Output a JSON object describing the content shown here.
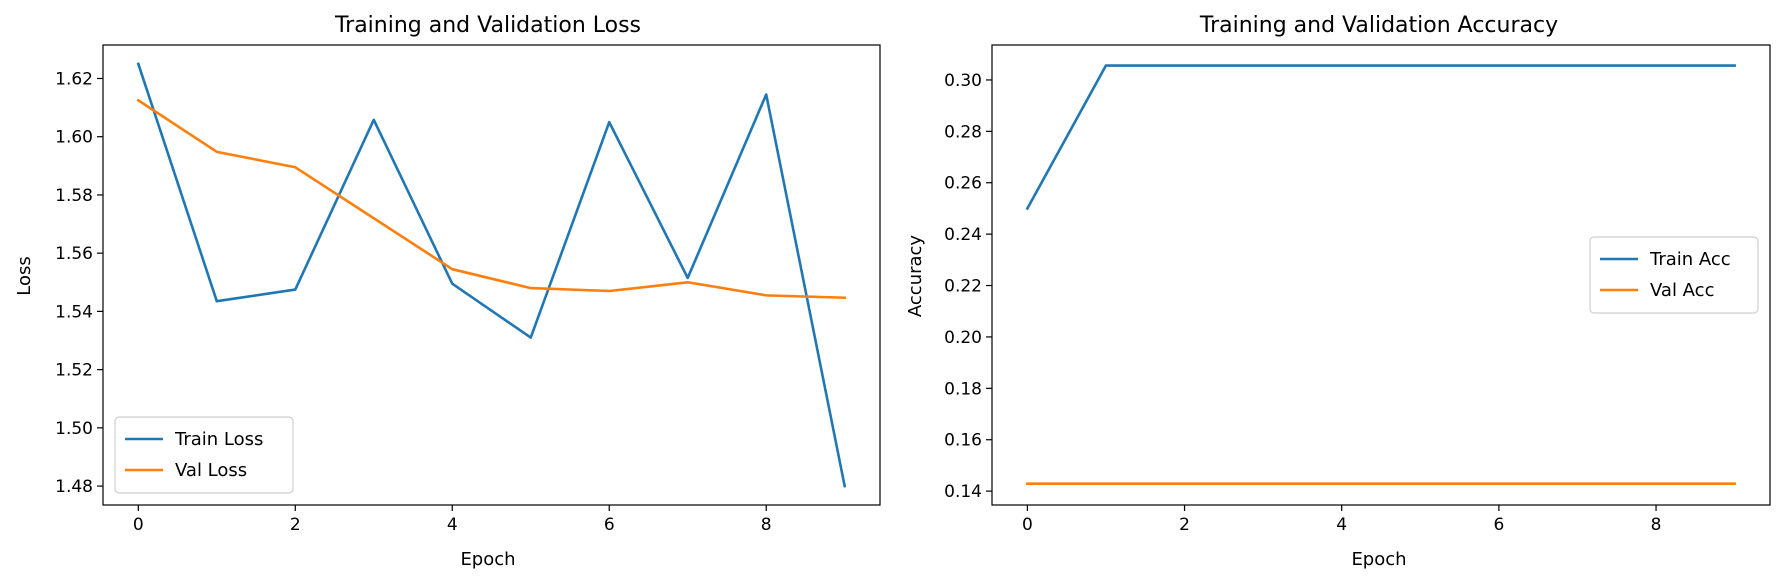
{
  "chart_data": [
    {
      "type": "line",
      "title": "Training and Validation Loss",
      "xlabel": "Epoch",
      "ylabel": "Loss",
      "xlim": [
        -0.45,
        9.45
      ],
      "ylim": [
        1.4735,
        1.6315
      ],
      "xticks": [
        0,
        2,
        4,
        6,
        8
      ],
      "yticks": [
        1.48,
        1.5,
        1.52,
        1.54,
        1.56,
        1.58,
        1.6,
        1.62
      ],
      "ytick_labels": [
        "1.48",
        "1.50",
        "1.52",
        "1.54",
        "1.56",
        "1.58",
        "1.60",
        "1.62"
      ],
      "legend": "lower-left",
      "grid": false,
      "x": [
        0,
        1,
        2,
        3,
        4,
        5,
        6,
        7,
        8,
        9
      ],
      "series": [
        {
          "name": "Train Loss",
          "color": "#1f77b4",
          "values": [
            1.625,
            1.5435,
            1.5475,
            1.6058,
            1.5495,
            1.531,
            1.605,
            1.5515,
            1.6145,
            1.48
          ]
        },
        {
          "name": "Val Loss",
          "color": "#ff7f0e",
          "values": [
            1.6125,
            1.5948,
            1.5895,
            1.572,
            1.5545,
            1.548,
            1.547,
            1.55,
            1.5455,
            1.5447
          ]
        }
      ]
    },
    {
      "type": "line",
      "title": "Training and Validation Accuracy",
      "xlabel": "Epoch",
      "ylabel": "Accuracy",
      "xlim": [
        -0.45,
        9.45
      ],
      "ylim": [
        0.1346,
        0.3136
      ],
      "xticks": [
        0,
        2,
        4,
        6,
        8
      ],
      "yticks": [
        0.14,
        0.16,
        0.18,
        0.2,
        0.22,
        0.24,
        0.26,
        0.28,
        0.3
      ],
      "ytick_labels": [
        "0.14",
        "0.16",
        "0.18",
        "0.20",
        "0.22",
        "0.24",
        "0.26",
        "0.28",
        "0.30"
      ],
      "legend": "center-right",
      "grid": false,
      "x": [
        0,
        1,
        2,
        3,
        4,
        5,
        6,
        7,
        8,
        9
      ],
      "series": [
        {
          "name": "Train Acc",
          "color": "#1f77b4",
          "values": [
            0.25,
            0.3056,
            0.3056,
            0.3056,
            0.3056,
            0.3056,
            0.3056,
            0.3056,
            0.3056,
            0.3056
          ]
        },
        {
          "name": "Val Acc",
          "color": "#ff7f0e",
          "values": [
            0.1429,
            0.1429,
            0.1429,
            0.1429,
            0.1429,
            0.1429,
            0.1429,
            0.1429,
            0.1429,
            0.1429
          ]
        }
      ]
    }
  ]
}
